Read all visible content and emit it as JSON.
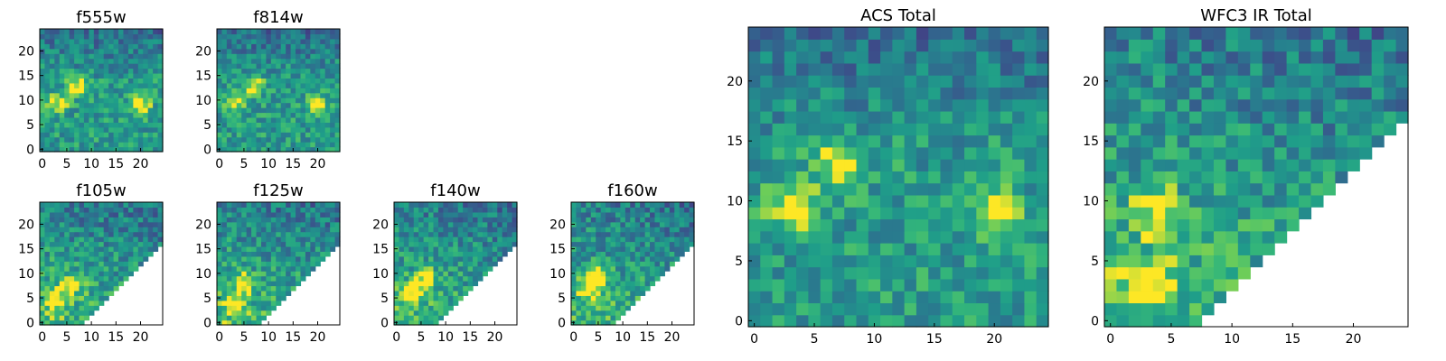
{
  "chart_data": [
    {
      "type": "heatmap",
      "title": "f555w",
      "xticks": [
        0,
        5,
        10,
        15,
        20
      ],
      "yticks": [
        0,
        5,
        10,
        15,
        20
      ],
      "xlim": [
        0,
        24
      ],
      "ylim": [
        0,
        24
      ],
      "grid": false,
      "colormap": "viridis",
      "mask": "none",
      "hotspots": [
        [
          3,
          9.5
        ],
        [
          20,
          9
        ],
        [
          7,
          13
        ]
      ],
      "seed": 11
    },
    {
      "type": "heatmap",
      "title": "f814w",
      "xticks": [
        0,
        5,
        10,
        15,
        20
      ],
      "yticks": [
        0,
        5,
        10,
        15,
        20
      ],
      "xlim": [
        0,
        24
      ],
      "ylim": [
        0,
        24
      ],
      "grid": false,
      "colormap": "viridis",
      "mask": "none",
      "hotspots": [
        [
          3,
          9.5
        ],
        [
          20,
          9
        ],
        [
          7,
          13
        ]
      ],
      "seed": 23
    },
    {
      "type": "heatmap",
      "title": "f105w",
      "xticks": [
        0,
        5,
        10,
        15,
        20
      ],
      "yticks": [
        0,
        5,
        10,
        15,
        20
      ],
      "xlim": [
        0,
        24
      ],
      "ylim": [
        0,
        24
      ],
      "grid": false,
      "colormap": "viridis",
      "mask": "lower-right-triangle",
      "hotspots": [
        [
          3,
          5
        ],
        [
          6,
          8
        ]
      ],
      "seed": 37
    },
    {
      "type": "heatmap",
      "title": "f125w",
      "xticks": [
        0,
        5,
        10,
        15,
        20
      ],
      "yticks": [
        0,
        5,
        10,
        15,
        20
      ],
      "xlim": [
        0,
        24
      ],
      "ylim": [
        0,
        24
      ],
      "grid": false,
      "colormap": "viridis",
      "mask": "lower-right-triangle",
      "hotspots": [
        [
          3,
          4
        ],
        [
          5,
          8
        ]
      ],
      "seed": 41
    },
    {
      "type": "heatmap",
      "title": "f140w",
      "xticks": [
        0,
        5,
        10,
        15,
        20
      ],
      "yticks": [
        0,
        5,
        10,
        15,
        20
      ],
      "xlim": [
        0,
        24
      ],
      "ylim": [
        0,
        24
      ],
      "grid": false,
      "colormap": "viridis",
      "mask": "lower-right-triangle",
      "hotspots": [
        [
          3,
          6
        ],
        [
          6,
          9
        ]
      ],
      "seed": 53
    },
    {
      "type": "heatmap",
      "title": "f160w",
      "xticks": [
        0,
        5,
        10,
        15,
        20
      ],
      "yticks": [
        0,
        5,
        10,
        15,
        20
      ],
      "xlim": [
        0,
        24
      ],
      "ylim": [
        0,
        24
      ],
      "grid": false,
      "colormap": "viridis",
      "mask": "lower-right-triangle",
      "hotspots": [
        [
          3,
          7
        ],
        [
          5,
          10
        ]
      ],
      "seed": 67
    },
    {
      "type": "heatmap",
      "title": "ACS Total",
      "xticks": [
        0,
        5,
        10,
        15,
        20
      ],
      "yticks": [
        0,
        5,
        10,
        15,
        20
      ],
      "xlim": [
        0,
        24
      ],
      "ylim": [
        0,
        24
      ],
      "grid": false,
      "colormap": "viridis",
      "mask": "none",
      "hotspots": [
        [
          3,
          9.5
        ],
        [
          20,
          9
        ],
        [
          7,
          13
        ]
      ],
      "seed": 79
    },
    {
      "type": "heatmap",
      "title": "WFC3 IR Total",
      "xticks": [
        0,
        5,
        10,
        15,
        20
      ],
      "yticks": [
        0,
        5,
        10,
        15,
        20
      ],
      "xlim": [
        0,
        24
      ],
      "ylim": [
        0,
        24
      ],
      "grid": false,
      "colormap": "viridis",
      "mask": "lower-right-triangle",
      "hotspots": [
        [
          4,
          9
        ],
        [
          3,
          3
        ]
      ],
      "seed": 97
    }
  ]
}
